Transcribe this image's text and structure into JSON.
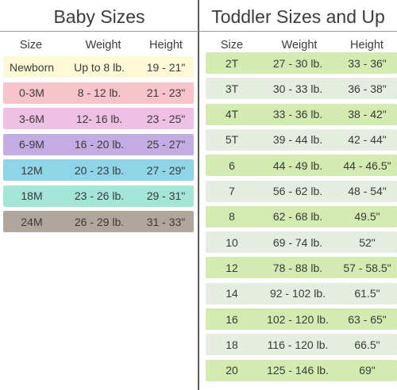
{
  "baby": {
    "title": "Baby Sizes",
    "headers": [
      "Size",
      "Weight",
      "Height"
    ],
    "rows": [
      {
        "size": "Newborn",
        "weight": "Up to 8 lb.",
        "height": "19 - 21\"",
        "color": "#fdf8d6"
      },
      {
        "size": "0-3M",
        "weight": "8 - 12 lb.",
        "height": "21 - 23\"",
        "color": "#f8c4cc"
      },
      {
        "size": "3-6M",
        "weight": "12- 16 lb.",
        "height": "23 - 25\"",
        "color": "#efc0e6"
      },
      {
        "size": "6-9M",
        "weight": "16 - 20 lb.",
        "height": "25 - 27\"",
        "color": "#c3abe3"
      },
      {
        "size": "12M",
        "weight": "20 - 23 lb.",
        "height": "27 - 29\"",
        "color": "#8fd5e8"
      },
      {
        "size": "18M",
        "weight": "23 - 26 lb.",
        "height": "29 - 31\"",
        "color": "#a3e6d7"
      },
      {
        "size": "24M",
        "weight": "26 - 29 lb.",
        "height": "31 - 33\"",
        "color": "#b0a69c"
      }
    ]
  },
  "toddler": {
    "title": "Toddler Sizes and Up",
    "headers": [
      "Size",
      "Weight",
      "Height"
    ],
    "rows": [
      {
        "size": "2T",
        "weight": "27 - 30 lb.",
        "height": "33 - 36\"",
        "color": "#d3ebb0"
      },
      {
        "size": "3T",
        "weight": "30 - 33 lb.",
        "height": "36 - 38\"",
        "color": "#e5ece0"
      },
      {
        "size": "4T",
        "weight": "33 - 36 lb.",
        "height": "38 - 42\"",
        "color": "#d3ebb0"
      },
      {
        "size": "5T",
        "weight": "39 - 44 lb.",
        "height": "42 - 44\"",
        "color": "#e5ece0"
      },
      {
        "size": "6",
        "weight": "44 - 49 lb.",
        "height": "44 - 46.5\"",
        "color": "#d3ebb0"
      },
      {
        "size": "7",
        "weight": "56 - 62 lb.",
        "height": "48 - 54\"",
        "color": "#e5ece0"
      },
      {
        "size": "8",
        "weight": "62 - 68 lb.",
        "height": "49.5\"",
        "color": "#d3ebb0"
      },
      {
        "size": "10",
        "weight": "69 - 74 lb.",
        "height": "52\"",
        "color": "#e5ece0"
      },
      {
        "size": "12",
        "weight": "78 - 88 lb.",
        "height": "57 - 58.5\"",
        "color": "#d3ebb0"
      },
      {
        "size": "14",
        "weight": "92 - 102 lb.",
        "height": "61.5\"",
        "color": "#e5ece0"
      },
      {
        "size": "16",
        "weight": "102 - 120 lb.",
        "height": "63 - 65\"",
        "color": "#d3ebb0"
      },
      {
        "size": "18",
        "weight": "116 - 120 lb.",
        "height": "66.5\"",
        "color": "#e5ece0"
      },
      {
        "size": "20",
        "weight": "125 - 146 lb.",
        "height": "69\"",
        "color": "#d3ebb0"
      }
    ]
  }
}
